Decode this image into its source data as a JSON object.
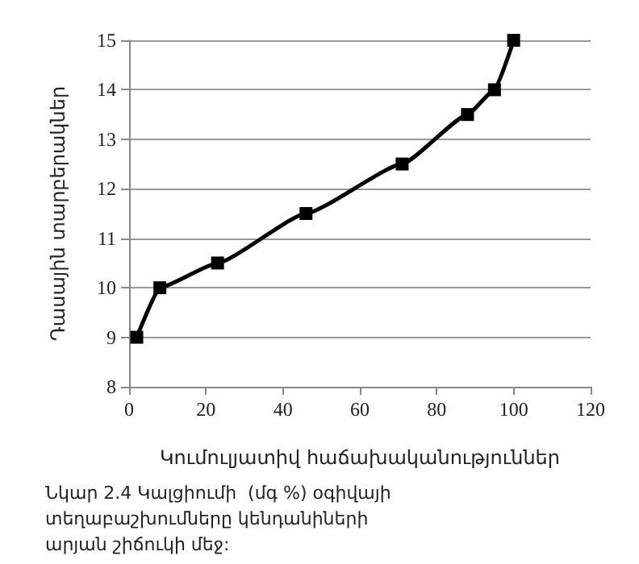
{
  "chart_data": {
    "type": "line",
    "xlabel": "Կումուլյատիվ հաճախականություններ",
    "ylabel": "Դասային տարբերակներ",
    "annotations": [
      "Նկար 2.4 Կալցիումի  (մգ %) օգիվայի տեղաբաշխումները կենդանիների արյան շիճուկի մեջ:"
    ],
    "x": [
      2,
      8,
      23,
      46,
      71,
      88,
      95,
      100
    ],
    "series": [
      {
        "color": "#000000",
        "values": [
          9,
          10,
          10.5,
          11.5,
          12.5,
          13.5,
          14,
          15
        ]
      }
    ],
    "xlim": [
      0,
      120
    ],
    "xticks": [
      0,
      20,
      40,
      60,
      80,
      100,
      120
    ],
    "ylim": [
      8,
      15
    ],
    "yticks": [
      8,
      9,
      10,
      11,
      12,
      13,
      14,
      15
    ],
    "grid": "y",
    "marker": "square",
    "line_style": "solid"
  }
}
